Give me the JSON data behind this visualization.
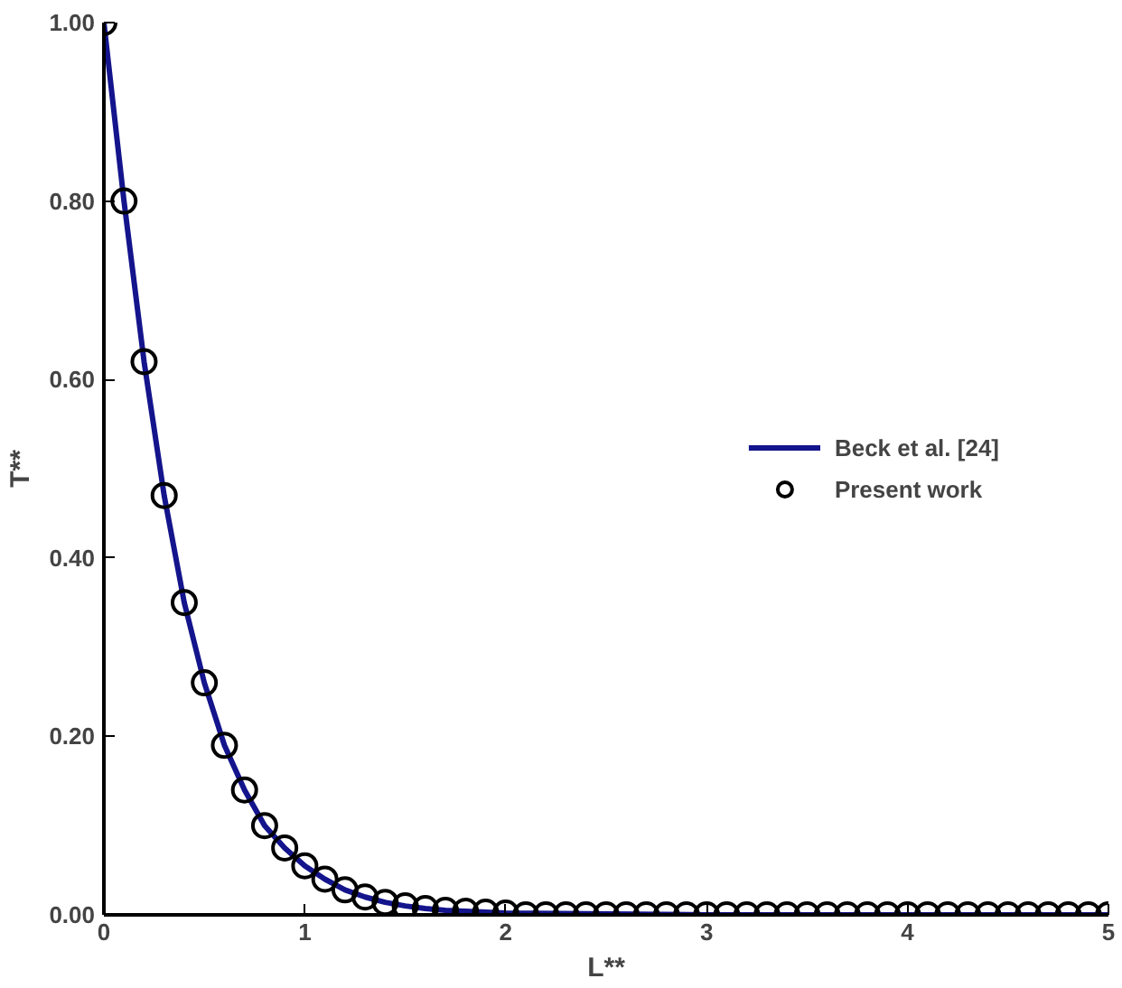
{
  "chart_data": {
    "type": "line",
    "xlabel": "L**",
    "ylabel": "T**",
    "xlim": [
      0,
      5
    ],
    "ylim": [
      0,
      1
    ],
    "xticks": [
      0,
      1,
      2,
      3,
      4,
      5
    ],
    "yticks": [
      {
        "value": 0,
        "label": "0.00"
      },
      {
        "value": 0.2,
        "label": "0.20"
      },
      {
        "value": 0.4,
        "label": "0.40"
      },
      {
        "value": 0.6,
        "label": "0.60"
      },
      {
        "value": 0.8,
        "label": "0.80"
      },
      {
        "value": 1,
        "label": "1.00"
      }
    ],
    "grid": false,
    "legend": "right",
    "series": [
      {
        "name": "Beck et al. [24]",
        "color": "#14148c",
        "marker": "none",
        "x": [
          0,
          0.1,
          0.2,
          0.3,
          0.4,
          0.5,
          0.6,
          0.7,
          0.8,
          0.9,
          1.0,
          1.1,
          1.2,
          1.3,
          1.4,
          1.5,
          1.6,
          1.7,
          1.8,
          1.9,
          2.0,
          3.0,
          4.0,
          5.0
        ],
        "values": [
          1.0,
          0.8,
          0.62,
          0.47,
          0.35,
          0.26,
          0.19,
          0.14,
          0.1,
          0.075,
          0.055,
          0.04,
          0.028,
          0.02,
          0.014,
          0.01,
          0.007,
          0.005,
          0.004,
          0.003,
          0.002,
          0.0,
          0.0,
          0.0
        ]
      },
      {
        "name": "Present work",
        "type": "scatter",
        "color": "#000000",
        "marker": "circle",
        "x": [
          0,
          0.1,
          0.2,
          0.3,
          0.4,
          0.5,
          0.6,
          0.7,
          0.8,
          0.9,
          1.0,
          1.1,
          1.2,
          1.3,
          1.4,
          1.5,
          1.6,
          1.7,
          1.8,
          1.9,
          2.0,
          2.1,
          2.2,
          2.3,
          2.4,
          2.5,
          2.6,
          2.7,
          2.8,
          2.9,
          3.0,
          3.1,
          3.2,
          3.3,
          3.4,
          3.5,
          3.6,
          3.7,
          3.8,
          3.9,
          4.0,
          4.1,
          4.2,
          4.3,
          4.4,
          4.5,
          4.6,
          4.7,
          4.8,
          4.9,
          5.0
        ],
        "values": [
          1.0,
          0.8,
          0.62,
          0.47,
          0.35,
          0.26,
          0.19,
          0.14,
          0.1,
          0.075,
          0.055,
          0.04,
          0.028,
          0.02,
          0.014,
          0.01,
          0.007,
          0.005,
          0.004,
          0.003,
          0.002,
          0.0,
          0.0,
          0.0,
          0.0,
          0.0,
          0.0,
          0.0,
          0.0,
          0.0,
          0.0,
          0.0,
          0.0,
          0.0,
          0.0,
          0.0,
          0.0,
          0.0,
          0.0,
          0.0,
          0.0,
          0.0,
          0.0,
          0.0,
          0.0,
          0.0,
          0.0,
          0.0,
          0.0,
          0.0,
          0.0
        ]
      }
    ]
  }
}
